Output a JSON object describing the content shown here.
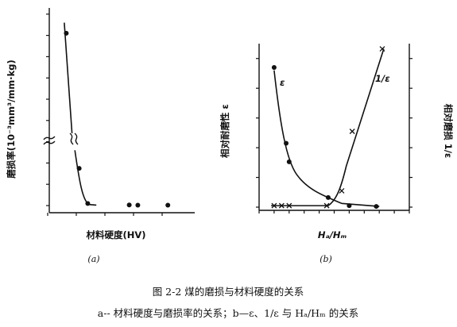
{
  "chart_data": [
    {
      "type": "scatter",
      "panel_label": "(a)",
      "xlabel": "材料硬度(HV)",
      "ylabel": "磨损率(10⁻³mm³/mm·kg)",
      "xlim": [
        100,
        560
      ],
      "ylim": [
        0,
        9
      ],
      "x_ticks": [
        "100",
        "200",
        "300",
        "400",
        "500"
      ],
      "y_ticks": [
        "0",
        "1",
        "2",
        "3",
        "4",
        "5",
        "6",
        "7",
        "8",
        "9"
      ],
      "series": [
        {
          "points": [
            [
              165,
              8.1
            ],
            [
              210,
              1.75
            ],
            [
              240,
              0.1
            ],
            [
              385,
              0.03
            ],
            [
              415,
              0.02
            ],
            [
              520,
              0.02
            ]
          ]
        }
      ]
    },
    {
      "type": "line",
      "panel_label": "(b)",
      "xlabel": "Hₐ/Hₘ",
      "ylabel": "相对耐磨性 ε",
      "ylabel_right": "相对磨损 1/ε",
      "xlim": [
        0.2,
        1.2
      ],
      "ylim": [
        0,
        1100
      ],
      "ylim_right": [
        0,
        2.2
      ],
      "x_ticks": [
        "0.2",
        "0.3",
        "0.4",
        "0.5",
        "0.6",
        "0.7",
        "0.8",
        "0.9",
        "1.0",
        "1.1",
        "1.2"
      ],
      "y_ticks": [
        "0",
        "200",
        "400",
        "600",
        "800",
        "1000"
      ],
      "y_ticks_right": [
        "0",
        "0.4",
        "0.8",
        "1.2",
        "1.6",
        "2.0"
      ],
      "series": [
        {
          "name": "ε",
          "marker": "dot",
          "points": [
            [
              0.3,
              940
            ],
            [
              0.38,
              430
            ],
            [
              0.4,
              305
            ],
            [
              0.66,
              65
            ],
            [
              0.8,
              10
            ],
            [
              0.98,
              5
            ]
          ]
        },
        {
          "name": "1/ε",
          "marker": "cross",
          "points": [
            [
              0.3,
              0.02
            ],
            [
              0.35,
              0.02
            ],
            [
              0.4,
              0.02
            ],
            [
              0.65,
              0.02
            ],
            [
              0.75,
              0.22
            ],
            [
              0.82,
              1.02
            ],
            [
              1.02,
              2.13
            ]
          ]
        }
      ]
    }
  ],
  "caption": {
    "title": "图 2-2   煤的磨损与材料硬度的关系",
    "subtitle": "a-- 材料硬度与磨损率的关系；b—ε、1/ε 与 Hₐ/Hₘ 的关系"
  }
}
